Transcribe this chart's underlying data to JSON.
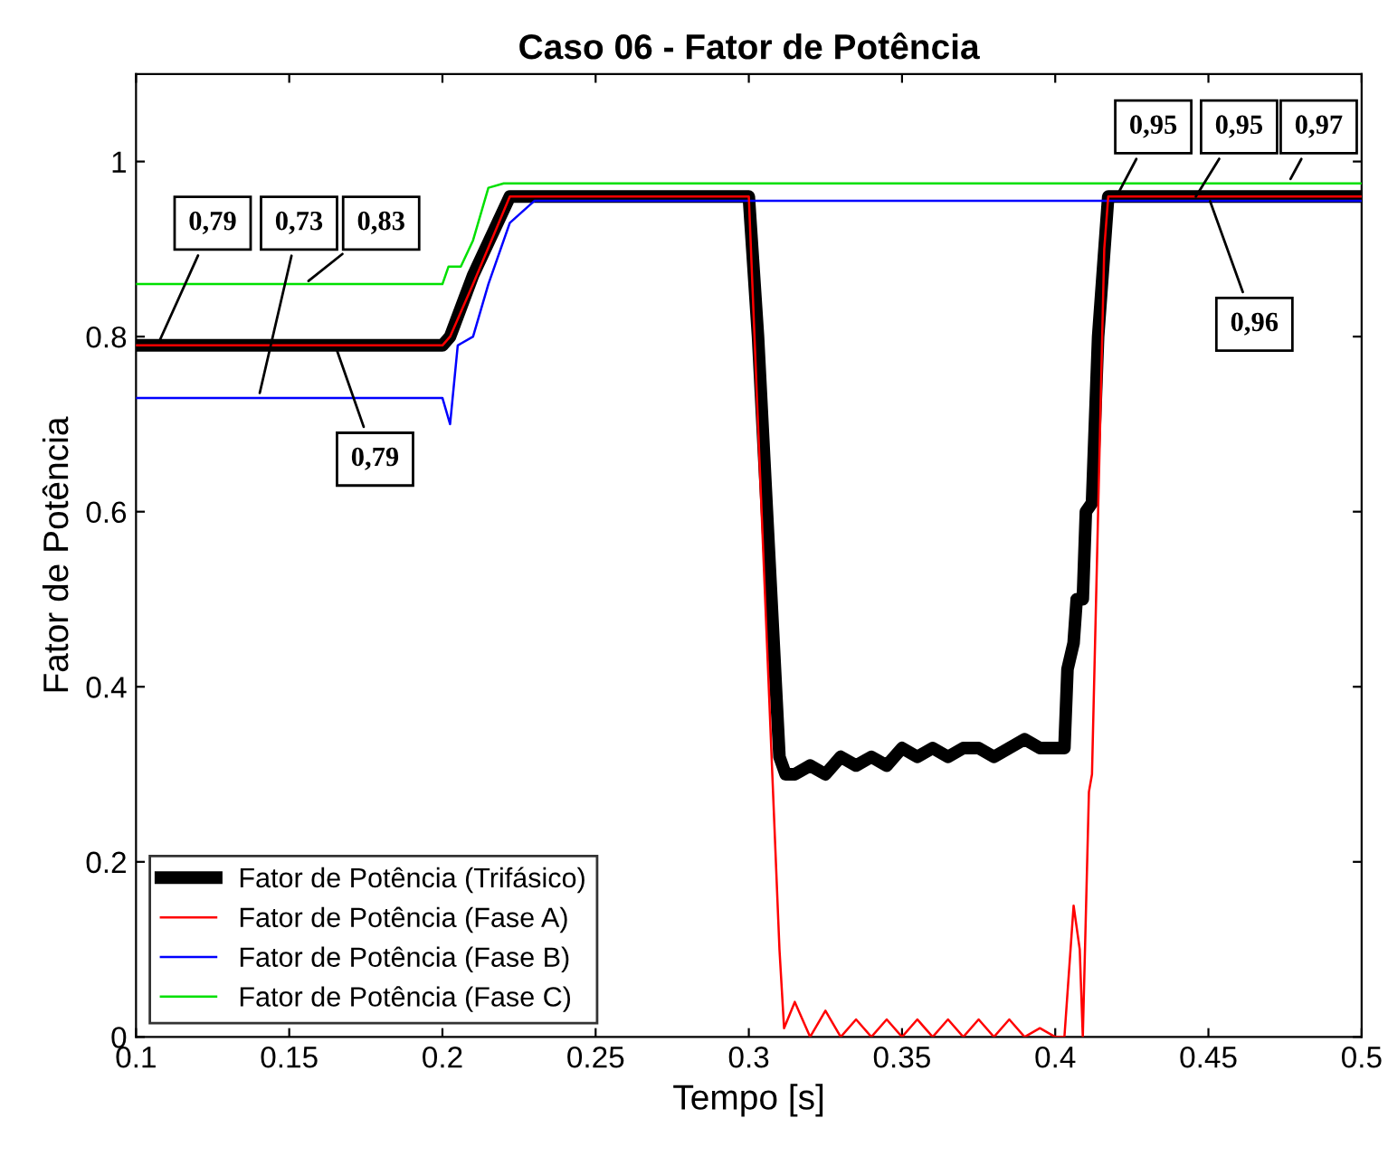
{
  "chart_data": {
    "type": "line",
    "title": "Caso 06 - Fator de Potência",
    "xlabel": "Tempo [s]",
    "ylabel": "Fator de Potência",
    "xlim": [
      0.1,
      0.5
    ],
    "ylim": [
      0,
      1.1
    ],
    "xticks": [
      0.1,
      0.15,
      0.2,
      0.25,
      0.3,
      0.35,
      0.4,
      0.45,
      0.5
    ],
    "yticks": [
      0,
      0.2,
      0.4,
      0.6,
      0.8,
      1
    ],
    "grid": false,
    "legend": "bottom left",
    "marker": "none",
    "line_style": "solid",
    "series": [
      {
        "name": "Fator de Potência (Trifásico)",
        "color": "#000000",
        "x": [
          0.1,
          0.2,
          0.2025,
          0.21,
          0.222,
          0.23,
          0.3,
          0.303,
          0.31,
          0.312,
          0.315,
          0.32,
          0.325,
          0.33,
          0.335,
          0.34,
          0.345,
          0.35,
          0.355,
          0.36,
          0.365,
          0.37,
          0.375,
          0.38,
          0.385,
          0.39,
          0.395,
          0.4,
          0.403,
          0.404,
          0.406,
          0.407,
          0.409,
          0.41,
          0.412,
          0.414,
          0.4173,
          0.43,
          0.5
        ],
        "values": [
          0.79,
          0.79,
          0.8,
          0.87,
          0.96,
          0.96,
          0.96,
          0.8,
          0.32,
          0.3,
          0.3,
          0.31,
          0.3,
          0.32,
          0.31,
          0.32,
          0.31,
          0.33,
          0.32,
          0.33,
          0.32,
          0.33,
          0.33,
          0.32,
          0.33,
          0.34,
          0.33,
          0.33,
          0.33,
          0.42,
          0.45,
          0.5,
          0.5,
          0.6,
          0.61,
          0.8,
          0.96,
          0.96,
          0.96
        ]
      },
      {
        "name": "Fator de Potência (Fase A)",
        "color": "#ff0000",
        "x": [
          0.1,
          0.2,
          0.2025,
          0.21,
          0.222,
          0.23,
          0.3,
          0.303,
          0.31,
          0.3115,
          0.315,
          0.32,
          0.325,
          0.33,
          0.335,
          0.34,
          0.345,
          0.35,
          0.355,
          0.36,
          0.365,
          0.37,
          0.375,
          0.38,
          0.385,
          0.39,
          0.395,
          0.4,
          0.403,
          0.405,
          0.406,
          0.408,
          0.409,
          0.411,
          0.412,
          0.414,
          0.416,
          0.4173,
          0.43,
          0.5
        ],
        "values": [
          0.79,
          0.79,
          0.8,
          0.86,
          0.96,
          0.96,
          0.96,
          0.7,
          0.1,
          0.01,
          0.04,
          0.0,
          0.03,
          0.0,
          0.02,
          0.0,
          0.02,
          0.0,
          0.02,
          0.0,
          0.02,
          0.0,
          0.02,
          0.0,
          0.02,
          0.0,
          0.01,
          0.0,
          0.0,
          0.1,
          0.15,
          0.1,
          0.0,
          0.28,
          0.3,
          0.6,
          0.9,
          0.96,
          0.96,
          0.96
        ]
      },
      {
        "name": "Fator de Potência (Fase B)",
        "color": "#0000ff",
        "x": [
          0.1,
          0.2,
          0.2025,
          0.205,
          0.21,
          0.215,
          0.222,
          0.23,
          0.3,
          0.5
        ],
        "values": [
          0.73,
          0.73,
          0.7,
          0.79,
          0.8,
          0.86,
          0.93,
          0.955,
          0.955,
          0.955
        ]
      },
      {
        "name": "Fator de Potência (Fase C)",
        "color": "#00e000",
        "x": [
          0.1,
          0.2,
          0.202,
          0.206,
          0.21,
          0.215,
          0.22,
          0.23,
          0.5
        ],
        "values": [
          0.86,
          0.86,
          0.88,
          0.88,
          0.91,
          0.97,
          0.975,
          0.975,
          0.975
        ]
      }
    ],
    "annotations": [
      {
        "text": "0,79",
        "x": 0.107,
        "y": 0.79
      },
      {
        "text": "0,73",
        "x": 0.14,
        "y": 0.73
      },
      {
        "text": "0,83",
        "x": 0.155,
        "y": 0.86
      },
      {
        "text": "0,79",
        "x": 0.165,
        "y": 0.79
      },
      {
        "text": "0,95",
        "x": 0.42,
        "y": 0.96
      },
      {
        "text": "0,95",
        "x": 0.445,
        "y": 0.955
      },
      {
        "text": "0,97",
        "x": 0.476,
        "y": 0.975
      },
      {
        "text": "0,96",
        "x": 0.45,
        "y": 0.96
      }
    ]
  }
}
